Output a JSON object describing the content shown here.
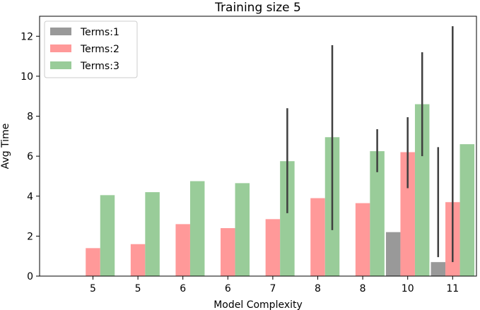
{
  "chart_data": {
    "type": "bar",
    "title": "Training size 5",
    "xlabel": "Model Complexity",
    "ylabel": "Avg Time",
    "categories": [
      "5",
      "5",
      "6",
      "6",
      "7",
      "8",
      "8",
      "10",
      "11"
    ],
    "ylim": [
      0,
      13
    ],
    "yticks": [
      0,
      2,
      4,
      6,
      8,
      10,
      12
    ],
    "grid": false,
    "legend_position": "top-left",
    "series": [
      {
        "name": "Terms:1",
        "color": "#999999",
        "values": [
          null,
          null,
          null,
          null,
          null,
          null,
          null,
          2.2,
          0.7
        ],
        "err_low": [
          null,
          null,
          null,
          null,
          null,
          null,
          null,
          null,
          0.95
        ],
        "err_high": [
          null,
          null,
          null,
          null,
          null,
          null,
          null,
          null,
          6.45
        ]
      },
      {
        "name": "Terms:2",
        "color": "#ff9999",
        "values": [
          1.4,
          1.6,
          2.6,
          2.4,
          2.85,
          3.9,
          3.65,
          6.2,
          3.7
        ],
        "err_low": [
          null,
          null,
          null,
          null,
          null,
          null,
          null,
          4.4,
          0.7
        ],
        "err_high": [
          null,
          null,
          null,
          null,
          null,
          null,
          null,
          7.95,
          12.5
        ]
      },
      {
        "name": "Terms:3",
        "color": "#99cc99",
        "values": [
          4.05,
          4.2,
          4.75,
          4.65,
          5.75,
          6.95,
          6.25,
          8.6,
          6.6
        ],
        "err_low": [
          null,
          null,
          null,
          null,
          3.15,
          2.3,
          5.2,
          6.0,
          null
        ],
        "err_high": [
          null,
          null,
          null,
          null,
          8.4,
          11.55,
          7.35,
          11.2,
          null
        ]
      }
    ]
  }
}
